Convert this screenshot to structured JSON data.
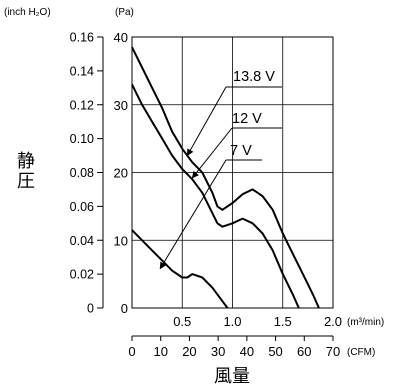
{
  "chart_data": {
    "type": "line",
    "units_top": {
      "inch": "(inch H₂O)",
      "pa": "(Pa)"
    },
    "ylabel": "静圧",
    "xlabel": "風量",
    "y_pa": {
      "range": [
        0,
        40
      ],
      "ticks": [
        "0",
        "10",
        "20",
        "30",
        "40"
      ]
    },
    "y_inch": {
      "range": [
        0,
        0.16
      ],
      "ticks": [
        "0",
        "0.02",
        "0.04",
        "0.06",
        "0.08",
        "0.10",
        "0.12",
        "0.14",
        "0.16"
      ]
    },
    "x_m3": {
      "range": [
        0,
        2.0
      ],
      "ticks": [
        "0.5",
        "1.0",
        "1.5",
        "2.0"
      ],
      "unit": "(m³/min)"
    },
    "x_cfm": {
      "range": [
        0,
        70
      ],
      "ticks": [
        "0",
        "10",
        "20",
        "30",
        "40",
        "50",
        "60",
        "70"
      ],
      "unit": "(CFM)"
    },
    "grid": true,
    "series": [
      {
        "name": "13.8 V",
        "points": [
          [
            0,
            38.5
          ],
          [
            0.1,
            35.5
          ],
          [
            0.2,
            32.5
          ],
          [
            0.3,
            29.5
          ],
          [
            0.4,
            26.0
          ],
          [
            0.5,
            23.5
          ],
          [
            0.6,
            21.5
          ],
          [
            0.7,
            20.0
          ],
          [
            0.8,
            17.0
          ],
          [
            0.85,
            15.0
          ],
          [
            0.9,
            14.5
          ],
          [
            1.0,
            15.5
          ],
          [
            1.1,
            16.8
          ],
          [
            1.2,
            17.5
          ],
          [
            1.3,
            16.5
          ],
          [
            1.4,
            14.5
          ],
          [
            1.5,
            11.0
          ],
          [
            1.6,
            8.0
          ],
          [
            1.7,
            5.0
          ],
          [
            1.8,
            2.0
          ],
          [
            1.86,
            0
          ]
        ]
      },
      {
        "name": "12 V",
        "points": [
          [
            0,
            33.0
          ],
          [
            0.1,
            30.0
          ],
          [
            0.2,
            27.5
          ],
          [
            0.3,
            25.0
          ],
          [
            0.4,
            22.5
          ],
          [
            0.5,
            20.5
          ],
          [
            0.6,
            19.0
          ],
          [
            0.7,
            17.0
          ],
          [
            0.8,
            14.0
          ],
          [
            0.85,
            12.5
          ],
          [
            0.9,
            12.0
          ],
          [
            1.0,
            12.5
          ],
          [
            1.1,
            13.2
          ],
          [
            1.2,
            12.5
          ],
          [
            1.3,
            11.0
          ],
          [
            1.4,
            8.5
          ],
          [
            1.5,
            5.0
          ],
          [
            1.6,
            2.0
          ],
          [
            1.66,
            0
          ]
        ]
      },
      {
        "name": "7 V",
        "points": [
          [
            0,
            11.5
          ],
          [
            0.1,
            10.0
          ],
          [
            0.2,
            8.5
          ],
          [
            0.3,
            7.0
          ],
          [
            0.4,
            5.5
          ],
          [
            0.5,
            4.5
          ],
          [
            0.55,
            4.5
          ],
          [
            0.6,
            5.0
          ],
          [
            0.7,
            4.5
          ],
          [
            0.8,
            3.0
          ],
          [
            0.9,
            1.0
          ],
          [
            0.95,
            0
          ]
        ]
      }
    ]
  }
}
